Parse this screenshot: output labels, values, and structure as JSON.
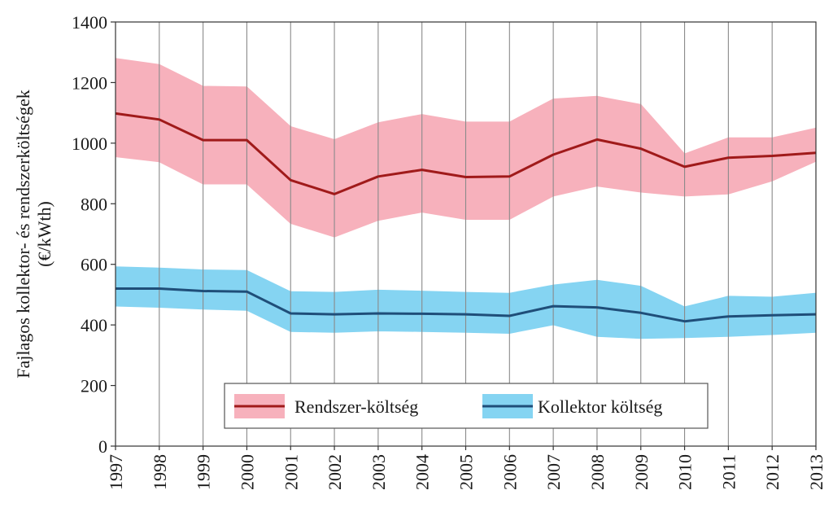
{
  "chart_data": {
    "type": "area",
    "title": "",
    "xlabel": "",
    "ylabel_lines": [
      "Fajlagos kollektor- és rendszerköltségek",
      "(€/kWth)"
    ],
    "x": [
      1997,
      1998,
      1999,
      2000,
      2001,
      2002,
      2003,
      2004,
      2005,
      2006,
      2007,
      2008,
      2009,
      2010,
      2011,
      2012,
      2013
    ],
    "xtick_labels": [
      "1997",
      "1998",
      "1999",
      "2000",
      "2001",
      "2002",
      "2003",
      "2004",
      "2005",
      "2006",
      "2007",
      "2008",
      "2009",
      "2010",
      "2011",
      "2012",
      "2013"
    ],
    "ylim": [
      0,
      1400
    ],
    "yticks": [
      0,
      200,
      400,
      600,
      800,
      1000,
      1200,
      1400
    ],
    "ytick_labels": [
      "0",
      "200",
      "400",
      "600",
      "800",
      "1000",
      "1200",
      "1400"
    ],
    "grid": "vertical",
    "legend_position": "bottom-center",
    "series": [
      {
        "name": "Rendszer-költség",
        "line_color": "#a01a1a",
        "band_color": "#f7b1bc",
        "values": [
          1098,
          1078,
          1010,
          1010,
          878,
          832,
          890,
          912,
          888,
          890,
          962,
          1012,
          982,
          922,
          952,
          958,
          968
        ],
        "upper": [
          1280,
          1260,
          1188,
          1186,
          1055,
          1012,
          1068,
          1095,
          1070,
          1070,
          1146,
          1155,
          1128,
          965,
          1018,
          1018,
          1050
        ],
        "lower": [
          955,
          938,
          865,
          865,
          735,
          690,
          745,
          772,
          748,
          748,
          825,
          858,
          838,
          825,
          832,
          875,
          940
        ]
      },
      {
        "name": "Kollektor költség",
        "line_color": "#1f4e79",
        "band_color": "#85d4f2",
        "values": [
          520,
          520,
          512,
          510,
          438,
          435,
          438,
          437,
          435,
          430,
          462,
          458,
          440,
          412,
          428,
          432,
          435
        ],
        "upper": [
          592,
          588,
          582,
          580,
          510,
          508,
          515,
          512,
          508,
          505,
          532,
          548,
          528,
          460,
          495,
          492,
          505
        ],
        "lower": [
          462,
          458,
          452,
          448,
          378,
          375,
          380,
          378,
          375,
          372,
          400,
          362,
          355,
          358,
          362,
          368,
          375
        ]
      }
    ]
  }
}
